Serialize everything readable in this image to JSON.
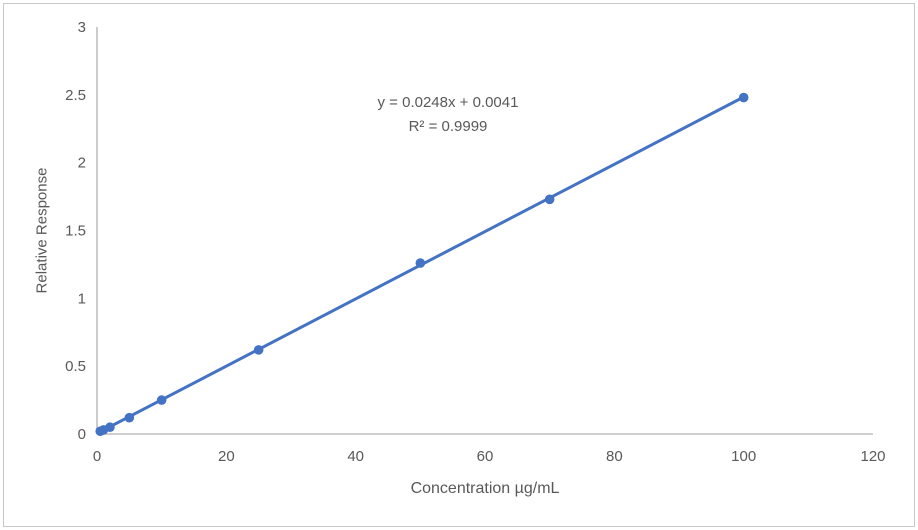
{
  "window": {
    "background": "#ffffff",
    "border_color": "#c8c8c8"
  },
  "chart_data": {
    "type": "scatter",
    "title": "",
    "xlabel": "Concentration µg/mL",
    "ylabel": "Relative Response",
    "x": [
      0.5,
      1,
      2,
      5,
      10,
      25,
      50,
      70,
      100
    ],
    "y": [
      0.02,
      0.03,
      0.05,
      0.12,
      0.25,
      0.62,
      1.26,
      1.73,
      2.48
    ],
    "trendline": {
      "slope": 0.0248,
      "intercept": 0.0041,
      "x_start": 0.5,
      "x_end": 100
    },
    "equation_label": "y = 0.0248x + 0.0041",
    "r_squared_label": "R² = 0.9999",
    "xlim": [
      0,
      120
    ],
    "ylim": [
      0,
      3
    ],
    "x_ticks": [
      "0",
      "20",
      "40",
      "60",
      "80",
      "100",
      "120"
    ],
    "x_tick_values": [
      0,
      20,
      40,
      60,
      80,
      100,
      120
    ],
    "y_ticks": [
      "0",
      "0.5",
      "1",
      "1.5",
      "2",
      "2.5",
      "3"
    ],
    "y_tick_values": [
      0,
      0.5,
      1,
      1.5,
      2,
      2.5,
      3
    ],
    "grid": false,
    "legend": "none",
    "marker_color": "#4472C4",
    "line_color": "#4472C4",
    "axis_color": "#BFBFBF",
    "text_color": "#595959"
  }
}
